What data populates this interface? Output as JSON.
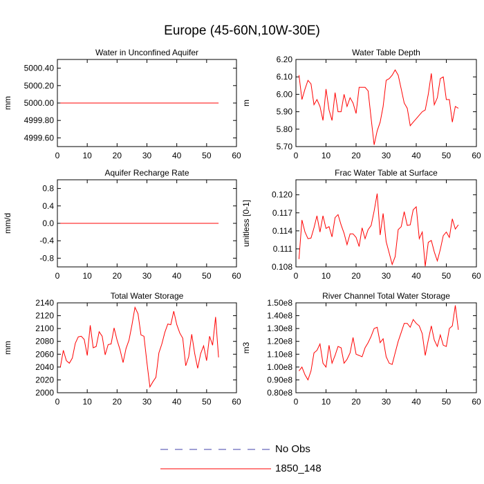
{
  "page": {
    "title": "Europe (45-60N,10W-30E)"
  },
  "legend": [
    {
      "label": "No Obs",
      "color": "#3f3fa8",
      "style": "dashed"
    },
    {
      "label": "1850_148",
      "color": "#ff0000",
      "style": "solid"
    }
  ],
  "chart_data": [
    {
      "type": "line",
      "title": "Water in Unconfined Aquifer",
      "ylabel": "mm",
      "xlim": [
        0,
        60
      ],
      "ylim": [
        4999.5,
        5000.5
      ],
      "xticks": [
        0,
        10,
        20,
        30,
        40,
        50,
        60
      ],
      "yticks": [
        4999.6,
        4999.8,
        5000.0,
        5000.2,
        5000.4
      ],
      "ytick_labels": [
        "4999.60",
        "4999.80",
        "5000.00",
        "5000.20",
        "5000.40"
      ],
      "series": [
        {
          "name": "1850_148",
          "color": "#ff0000",
          "x": [
            1,
            54
          ],
          "y": [
            5000.0,
            5000.0
          ]
        }
      ]
    },
    {
      "type": "line",
      "title": "Water Table Depth",
      "ylabel": "m",
      "xlim": [
        0,
        60
      ],
      "ylim": [
        5.7,
        6.2
      ],
      "xticks": [
        0,
        10,
        20,
        30,
        40,
        50,
        60
      ],
      "yticks": [
        5.7,
        5.8,
        5.9,
        6.0,
        6.1,
        6.2
      ],
      "ytick_labels": [
        "5.70",
        "5.80",
        "5.90",
        "6.00",
        "6.10",
        "6.20"
      ],
      "series": [
        {
          "name": "1850_148",
          "color": "#ff0000",
          "x": [
            1,
            2,
            3,
            4,
            5,
            6,
            7,
            8,
            9,
            10,
            11,
            12,
            13,
            14,
            15,
            16,
            17,
            18,
            19,
            20,
            21,
            22,
            23,
            24,
            25,
            26,
            27,
            28,
            29,
            30,
            31,
            32,
            33,
            34,
            35,
            36,
            37,
            38,
            39,
            40,
            41,
            42,
            43,
            44,
            45,
            46,
            47,
            48,
            49,
            50,
            51,
            52,
            53,
            54
          ],
          "y": [
            6.11,
            5.97,
            6.03,
            6.08,
            6.06,
            5.94,
            5.97,
            5.93,
            5.85,
            6.03,
            5.91,
            5.85,
            6.01,
            5.9,
            5.9,
            6.0,
            5.93,
            5.98,
            5.95,
            5.89,
            6.04,
            6.04,
            6.04,
            6.02,
            5.86,
            5.71,
            5.79,
            5.84,
            5.93,
            6.08,
            6.09,
            6.11,
            6.14,
            6.11,
            6.03,
            5.95,
            5.92,
            5.82,
            5.84,
            5.86,
            5.88,
            5.9,
            5.91,
            6.0,
            6.12,
            5.94,
            5.98,
            6.09,
            6.1,
            5.97,
            5.97,
            5.84,
            5.93,
            5.92
          ]
        }
      ]
    },
    {
      "type": "line",
      "title": "Aquifer Recharge Rate",
      "ylabel": "mm/d",
      "xlim": [
        0,
        60
      ],
      "ylim": [
        -1.0,
        1.0
      ],
      "xticks": [
        0,
        10,
        20,
        30,
        40,
        50,
        60
      ],
      "yticks": [
        -0.8,
        -0.4,
        0.0,
        0.4,
        0.8
      ],
      "ytick_labels": [
        "-0.8",
        "-0.4",
        "0.0",
        "0.4",
        "0.8"
      ],
      "series": [
        {
          "name": "1850_148",
          "color": "#ff0000",
          "x": [
            1,
            54
          ],
          "y": [
            0.0,
            0.0
          ]
        }
      ]
    },
    {
      "type": "line",
      "title": "Frac Water Table at Surface",
      "ylabel": "unitless [0-1]",
      "xlim": [
        0,
        60
      ],
      "ylim": [
        0.108,
        0.1225
      ],
      "xticks": [
        0,
        10,
        20,
        30,
        40,
        50,
        60
      ],
      "yticks": [
        0.108,
        0.111,
        0.114,
        0.117,
        0.12
      ],
      "ytick_labels": [
        "0.108",
        "0.111",
        "0.114",
        "0.117",
        "0.120"
      ],
      "series": [
        {
          "name": "1850_148",
          "color": "#ff0000",
          "x": [
            1,
            2,
            3,
            4,
            5,
            6,
            7,
            8,
            9,
            10,
            11,
            12,
            13,
            14,
            15,
            16,
            17,
            18,
            19,
            20,
            21,
            22,
            23,
            24,
            25,
            26,
            27,
            28,
            29,
            30,
            31,
            32,
            33,
            34,
            35,
            36,
            37,
            38,
            39,
            40,
            41,
            42,
            43,
            44,
            45,
            46,
            47,
            48,
            49,
            50,
            51,
            52,
            53,
            54
          ],
          "y": [
            0.1093,
            0.1158,
            0.1138,
            0.1127,
            0.1128,
            0.1145,
            0.1165,
            0.1138,
            0.1165,
            0.1144,
            0.1147,
            0.113,
            0.1162,
            0.1167,
            0.115,
            0.1136,
            0.1117,
            0.1135,
            0.1135,
            0.1129,
            0.1114,
            0.1145,
            0.1127,
            0.1142,
            0.1149,
            0.1173,
            0.1202,
            0.1133,
            0.1169,
            0.1122,
            0.1103,
            0.1084,
            0.1097,
            0.1142,
            0.1147,
            0.1172,
            0.1149,
            0.115,
            0.1175,
            0.118,
            0.1127,
            0.1138,
            0.1081,
            0.1121,
            0.1124,
            0.1105,
            0.109,
            0.1109,
            0.1132,
            0.1138,
            0.1129,
            0.116,
            0.1143,
            0.115
          ]
        }
      ]
    },
    {
      "type": "line",
      "title": "Total Water Storage",
      "ylabel": "mm",
      "xlim": [
        0,
        60
      ],
      "ylim": [
        2000,
        2140
      ],
      "xticks": [
        0,
        10,
        20,
        30,
        40,
        50,
        60
      ],
      "yticks": [
        2000,
        2020,
        2040,
        2060,
        2080,
        2100,
        2120,
        2140
      ],
      "ytick_labels": [
        "2000",
        "2020",
        "2040",
        "2060",
        "2080",
        "2100",
        "2120",
        "2140"
      ],
      "series": [
        {
          "name": "1850_148",
          "color": "#ff0000",
          "x": [
            1,
            2,
            3,
            4,
            5,
            6,
            7,
            8,
            9,
            10,
            11,
            12,
            13,
            14,
            15,
            16,
            17,
            18,
            19,
            20,
            21,
            22,
            23,
            24,
            25,
            26,
            27,
            28,
            29,
            30,
            31,
            32,
            33,
            34,
            35,
            36,
            37,
            38,
            39,
            40,
            41,
            42,
            43,
            44,
            45,
            46,
            47,
            48,
            49,
            50,
            51,
            52,
            53,
            54
          ],
          "y": [
            2040,
            2066,
            2050,
            2046,
            2054,
            2077,
            2087,
            2088,
            2083,
            2058,
            2105,
            2070,
            2072,
            2095,
            2088,
            2059,
            2075,
            2076,
            2101,
            2082,
            2067,
            2047,
            2069,
            2082,
            2106,
            2133,
            2123,
            2090,
            2088,
            2047,
            2009,
            2017,
            2024,
            2062,
            2076,
            2094,
            2107,
            2106,
            2127,
            2106,
            2093,
            2085,
            2042,
            2056,
            2091,
            2061,
            2038,
            2061,
            2073,
            2050,
            2088,
            2074,
            2118,
            2055
          ]
        }
      ]
    },
    {
      "type": "line",
      "title": "River Channel Total Water Storage",
      "ylabel": "m3",
      "xlim": [
        0,
        60
      ],
      "ylim": [
        0.8,
        1.5
      ],
      "xticks": [
        0,
        10,
        20,
        30,
        40,
        50,
        60
      ],
      "yticks": [
        0.8,
        0.9,
        1.0,
        1.1,
        1.2,
        1.3,
        1.4,
        1.5
      ],
      "ytick_labels": [
        "0.80e8",
        "0.90e8",
        "1.00e8",
        "1.10e8",
        "1.20e8",
        "1.30e8",
        "1.40e8",
        "1.50e8"
      ],
      "series": [
        {
          "name": "1850_148",
          "color": "#ff0000",
          "x": [
            1,
            2,
            3,
            4,
            5,
            6,
            7,
            8,
            9,
            10,
            11,
            12,
            13,
            14,
            15,
            16,
            17,
            18,
            19,
            20,
            21,
            22,
            23,
            24,
            25,
            26,
            27,
            28,
            29,
            30,
            31,
            32,
            33,
            34,
            35,
            36,
            37,
            38,
            39,
            40,
            41,
            42,
            43,
            44,
            45,
            46,
            47,
            48,
            49,
            50,
            51,
            52,
            53,
            54
          ],
          "y": [
            0.97,
            1.0,
            0.94,
            0.9,
            0.97,
            1.11,
            1.13,
            1.18,
            1.03,
            1.0,
            1.17,
            1.03,
            1.09,
            1.16,
            1.15,
            1.03,
            1.06,
            1.11,
            1.23,
            1.1,
            1.09,
            1.08,
            1.15,
            1.19,
            1.24,
            1.3,
            1.31,
            1.19,
            1.22,
            1.08,
            1.03,
            1.02,
            1.11,
            1.2,
            1.27,
            1.34,
            1.34,
            1.31,
            1.37,
            1.34,
            1.32,
            1.26,
            1.09,
            1.21,
            1.32,
            1.21,
            1.16,
            1.25,
            1.17,
            1.16,
            1.3,
            1.32,
            1.48,
            1.29
          ]
        }
      ]
    }
  ]
}
